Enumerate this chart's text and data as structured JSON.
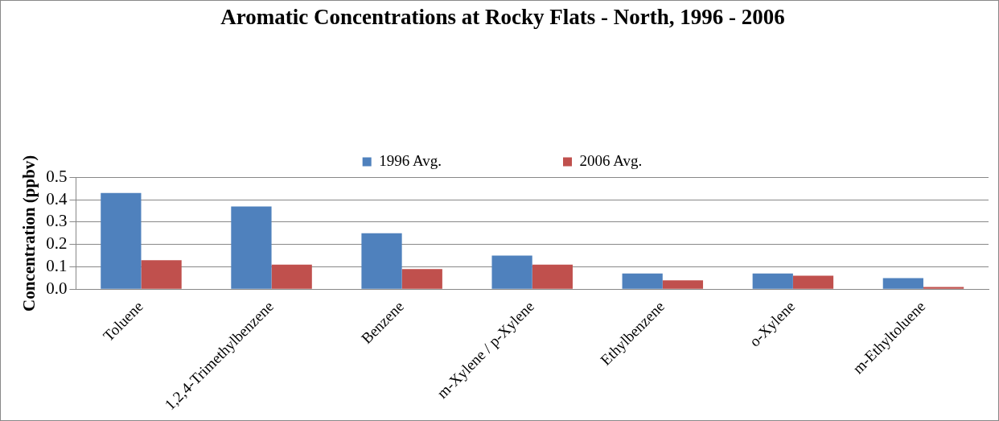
{
  "chart_data": {
    "type": "bar",
    "title": "Aromatic Concentrations at Rocky Flats - North, 1996 - 2006",
    "ylabel": "Concentration (ppbv)",
    "categories": [
      "Toluene",
      "1,2,4-Trimethylbenzene",
      "Benzene",
      "m-Xylene / p-Xylene",
      "Ethylbenzene",
      "o-Xylene",
      "m-Ethyltoluene"
    ],
    "series": [
      {
        "name": "1996 Avg.",
        "color": "#4f81bd",
        "values": [
          0.43,
          0.37,
          0.25,
          0.15,
          0.07,
          0.07,
          0.05
        ]
      },
      {
        "name": "2006 Avg.",
        "color": "#c0504d",
        "values": [
          0.13,
          0.11,
          0.09,
          0.11,
          0.04,
          0.06,
          0.01
        ]
      }
    ],
    "ylim": [
      0,
      0.5
    ],
    "yticks": [
      {
        "value": 0,
        "label": "0.0"
      },
      {
        "value": 0.1,
        "label": "0.1"
      },
      {
        "value": 0.2,
        "label": "0.2"
      },
      {
        "value": 0.3,
        "label": "0.3"
      },
      {
        "value": 0.4,
        "label": "0.4"
      },
      {
        "value": 0.5,
        "label": "0.5"
      }
    ],
    "grid": "y",
    "legend": "top"
  }
}
